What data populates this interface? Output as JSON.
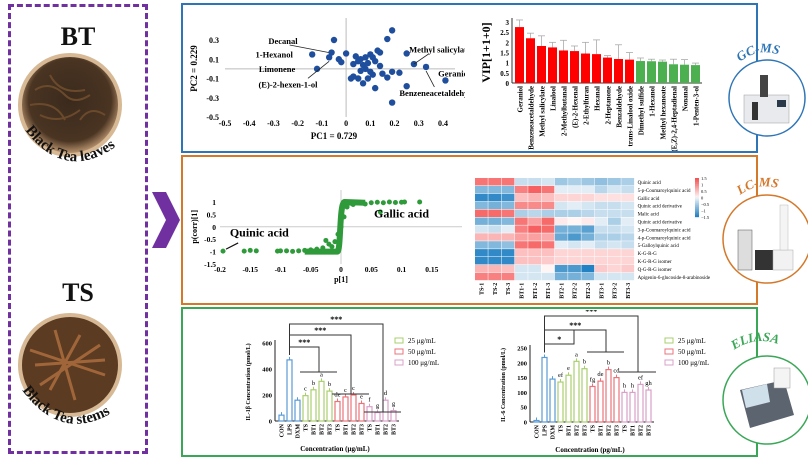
{
  "samples": {
    "bt": {
      "abbr": "BT",
      "name": "Black Tea leaves"
    },
    "ts": {
      "abbr": "TS",
      "name": "Black Tea stems"
    }
  },
  "instruments": {
    "gcms": "GC-MS",
    "lcms": "LC-MS",
    "eliasa": "ELIASA"
  },
  "colors": {
    "purple": "#7030a0",
    "gcms": "#2e75b6",
    "lcms": "#d4782a",
    "eliasa": "#3aa757",
    "red_bar": "#ff0000",
    "green_bar": "#4caf50",
    "dot_blue": "#1f4e9c",
    "dot_green": "#2e9a3a"
  },
  "chart_data": [
    {
      "type": "scatter",
      "id": "pca",
      "xlabel": "PC1 = 0.729",
      "ylabel": "PC2 = 0.229",
      "xlim": [
        -0.5,
        0.4
      ],
      "ylim": [
        -0.5,
        0.3
      ],
      "xticks": [
        "-0.5",
        "-0.4",
        "-0.3",
        "-0.2",
        "-0.1",
        "0",
        "0.1",
        "0.2",
        "0.3",
        "0.4"
      ],
      "yticks": [
        "0.3",
        "0.1",
        "-0.1",
        "-0.3",
        "-0.5"
      ],
      "points": [
        [
          -0.06,
          0.17
        ],
        [
          -0.14,
          0.15
        ],
        [
          -0.12,
          0.0
        ],
        [
          -0.07,
          0.12
        ],
        [
          0.28,
          0.05
        ],
        [
          0.41,
          -0.12
        ],
        [
          0.33,
          0.02
        ],
        [
          0.19,
          -0.35
        ],
        [
          -0.05,
          0.3
        ],
        [
          -0.03,
          0.1
        ],
        [
          -0.02,
          0.07
        ],
        [
          0.0,
          0.16
        ],
        [
          0.04,
          0.13
        ],
        [
          0.03,
          0.05
        ],
        [
          0.05,
          0.08
        ],
        [
          0.06,
          0.1
        ],
        [
          0.07,
          0.04
        ],
        [
          0.08,
          0.0
        ],
        [
          0.09,
          0.06
        ],
        [
          0.1,
          0.15
        ],
        [
          0.11,
          0.12
        ],
        [
          0.12,
          0.08
        ],
        [
          0.13,
          0.19
        ],
        [
          0.14,
          0.17
        ],
        [
          0.1,
          -0.03
        ],
        [
          0.11,
          -0.06
        ],
        [
          0.06,
          -0.02
        ],
        [
          0.05,
          -0.1
        ],
        [
          0.03,
          -0.08
        ],
        [
          0.07,
          -0.15
        ],
        [
          0.12,
          -0.2
        ],
        [
          0.15,
          -0.05
        ],
        [
          0.17,
          -0.09
        ],
        [
          0.19,
          -0.03
        ],
        [
          0.22,
          -0.04
        ],
        [
          0.25,
          0.16
        ],
        [
          0.25,
          -0.18
        ],
        [
          0.17,
          0.31
        ],
        [
          0.19,
          0.4
        ],
        [
          0.14,
          0.03
        ],
        [
          0.09,
          -0.1
        ],
        [
          0.08,
          0.12
        ],
        [
          0.02,
          -0.1
        ]
      ],
      "labels": [
        {
          "text": "Decanal",
          "point": [
            -0.06,
            0.17
          ]
        },
        {
          "text": "1-Hexanol",
          "point": [
            -0.14,
            0.15
          ]
        },
        {
          "text": "Limonene",
          "point": [
            -0.12,
            0.0
          ]
        },
        {
          "text": "(E)-2-hexen-1-ol",
          "point": [
            -0.07,
            0.12
          ]
        },
        {
          "text": "Methyl salicylate",
          "point": [
            0.28,
            0.05
          ]
        },
        {
          "text": "Geraniol",
          "point": [
            0.41,
            -0.12
          ]
        },
        {
          "text": "Benzeneacetaldehyde",
          "point": [
            0.33,
            0.02
          ]
        }
      ]
    },
    {
      "type": "bar",
      "id": "vip",
      "ylabel": "VIP[1+1+0]",
      "ylim": [
        0,
        3
      ],
      "yticks": [
        "0",
        "0.5",
        "1",
        "1.5",
        "2",
        "2.5",
        "3"
      ],
      "categories": [
        "Geraniol",
        "Benzeneacetaldehyde",
        "Methyl salicylate",
        "Linalool",
        "2-Methylbutanal",
        "(E)-2-Hexenal",
        "2-Ethylfuran",
        "Hexanal",
        "2-Heptanone",
        "Benzaldehyde",
        "trans-Linalool oxide",
        "Dimethyl sulfide",
        "1-Hexanol",
        "Methyl hexanoate",
        "(E,Z)-2,4-Heptadienal",
        "Nonanal",
        "1-Penten-3-ol"
      ],
      "values": [
        2.75,
        2.2,
        1.82,
        1.75,
        1.6,
        1.57,
        1.45,
        1.42,
        1.25,
        1.18,
        1.15,
        1.08,
        1.07,
        1.05,
        0.92,
        0.9,
        0.88
      ],
      "errors": [
        0.35,
        0.25,
        0.5,
        0.25,
        0.5,
        0.25,
        0.55,
        0.7,
        0.1,
        0.7,
        0.35,
        0.15,
        0.1,
        0.08,
        0.25,
        0.25,
        0.1
      ],
      "bar_colors": [
        "red",
        "red",
        "red",
        "red",
        "red",
        "red",
        "red",
        "red",
        "red",
        "red",
        "red",
        "green",
        "green",
        "green",
        "green",
        "green",
        "green"
      ]
    },
    {
      "type": "scatter",
      "id": "splot",
      "xlabel": "p[1]",
      "ylabel": "p(corr)[1]",
      "xlim": [
        -0.2,
        0.2
      ],
      "ylim": [
        -1.5,
        1.3
      ],
      "xticks": [
        "-0.2",
        "-0.15",
        "-0.1",
        "-0.05",
        "0",
        "0.05",
        "0.1",
        "0.15"
      ],
      "yticks": [
        "1",
        "0.5",
        "0",
        "-0.5",
        "-1",
        "-1.5"
      ],
      "points": [
        [
          -0.195,
          -0.98
        ],
        [
          -0.16,
          -0.98
        ],
        [
          -0.15,
          -0.95
        ],
        [
          -0.14,
          -0.97
        ],
        [
          -0.105,
          -0.98
        ],
        [
          -0.1,
          -0.97
        ],
        [
          -0.09,
          -0.97
        ],
        [
          -0.08,
          -0.99
        ],
        [
          -0.07,
          -0.97
        ],
        [
          -0.06,
          -0.95
        ],
        [
          -0.05,
          -0.93
        ],
        [
          -0.04,
          -0.9
        ],
        [
          -0.03,
          -0.85
        ],
        [
          -0.025,
          -0.55
        ],
        [
          -0.02,
          -0.7
        ],
        [
          -0.015,
          -0.8
        ],
        [
          -0.01,
          -0.6
        ],
        [
          -0.005,
          -0.3
        ],
        [
          0.0,
          0.0
        ],
        [
          0.005,
          0.4
        ],
        [
          0.01,
          0.8
        ],
        [
          0.015,
          0.95
        ],
        [
          0.02,
          0.9
        ],
        [
          0.03,
          0.97
        ],
        [
          0.04,
          0.92
        ],
        [
          0.05,
          0.97
        ],
        [
          0.06,
          0.99
        ],
        [
          0.065,
          0.6
        ],
        [
          0.07,
          0.97
        ],
        [
          0.08,
          1.0
        ],
        [
          0.09,
          0.98
        ],
        [
          0.1,
          0.99
        ],
        [
          0.105,
          1.0
        ],
        [
          0.13,
          1.0
        ]
      ],
      "labels": [
        {
          "text": "Gallic acid",
          "point": [
            0.1,
            0.99
          ]
        },
        {
          "text": "Quinic acid",
          "point": [
            -0.195,
            -0.98
          ]
        }
      ]
    },
    {
      "type": "heatmap",
      "id": "heatmap",
      "columns": [
        "TS-1",
        "TS-2",
        "TS-3",
        "BT1-1",
        "BT1-2",
        "BT1-3",
        "BT2-1",
        "BT2-2",
        "BT2-3",
        "BT3-1",
        "BT3-2",
        "BT3-3"
      ],
      "rows": [
        "Quinic acid",
        "5-p-Coumaroylquinic acid",
        "Gallic acid",
        "Quinic acid derivative",
        "Malic acid",
        "Quinic acid derivative",
        "3-p-Coumaroylquinic acid",
        "4-p-Coumaroylquinic acid",
        "5-Galloylquinic acid",
        "K-G-R-G",
        "K-G-R-G isomer",
        "Q-G-R-G isomer",
        "Apigenin-6-glucoside-8-arabinoside"
      ],
      "values": [
        [
          1.2,
          1.2,
          1.2,
          -0.3,
          -0.3,
          -0.2,
          -0.6,
          -0.5,
          -0.6,
          -0.7,
          -0.6,
          -0.5
        ],
        [
          -0.8,
          -0.8,
          -0.8,
          1.1,
          1.4,
          1.2,
          -0.1,
          -0.1,
          -0.1,
          -0.4,
          -0.2,
          -0.3
        ],
        [
          -1.4,
          -1.4,
          -1.3,
          0.5,
          0.6,
          0.5,
          0.3,
          0.3,
          0.3,
          0.2,
          0.2,
          0.2
        ],
        [
          -0.8,
          -0.9,
          -0.8,
          1.0,
          1.0,
          1.0,
          -0.2,
          -0.1,
          -0.2,
          -0.3,
          -0.3,
          -0.2
        ],
        [
          1.3,
          1.3,
          1.2,
          -0.5,
          -0.4,
          -0.5,
          -0.5,
          -0.5,
          -0.4,
          -0.3,
          -0.3,
          -0.3
        ],
        [
          -0.9,
          -0.9,
          -0.8,
          1.2,
          0.8,
          1.3,
          0.1,
          0.0,
          0.1,
          -0.1,
          -0.5,
          -0.1
        ],
        [
          -0.2,
          -0.3,
          -0.1,
          1.1,
          1.4,
          1.3,
          -0.9,
          -0.9,
          -1.1,
          -0.3,
          -0.3,
          -0.2
        ],
        [
          0.6,
          0.6,
          0.6,
          0.8,
          0.8,
          0.7,
          -1.0,
          -1.2,
          -0.9,
          -0.5,
          -0.5,
          -0.4
        ],
        [
          -0.8,
          -0.8,
          -0.7,
          1.2,
          1.3,
          1.2,
          -0.1,
          -0.2,
          -0.1,
          -0.3,
          -0.2,
          -0.3
        ],
        [
          -1.4,
          -1.4,
          -1.4,
          0.5,
          0.5,
          0.5,
          0.3,
          0.3,
          0.3,
          0.3,
          0.3,
          0.3
        ],
        [
          -1.4,
          -1.4,
          -1.4,
          0.5,
          0.5,
          0.4,
          0.3,
          0.3,
          0.3,
          0.3,
          0.3,
          0.3
        ],
        [
          0.6,
          0.6,
          0.5,
          -0.2,
          -0.2,
          0.0,
          -1.2,
          -1.2,
          -1.5,
          0.4,
          0.3,
          0.4
        ],
        [
          1.1,
          1.1,
          1.1,
          -0.2,
          -0.2,
          -0.2,
          -0.9,
          -0.9,
          -0.8,
          -0.2,
          -0.2,
          -0.2
        ]
      ],
      "scale": [
        -1.5,
        1.5
      ],
      "scale_ticks": [
        "1.5",
        "1",
        "0.5",
        "0",
        "−0.5",
        "−1",
        "−1.5"
      ]
    },
    {
      "type": "bar",
      "id": "il1b",
      "ylabel": "IL-1β Concentration (pmol/L)",
      "xlabel": "Concentration (μg/mL)",
      "ylim": [
        0,
        600
      ],
      "yticks": [
        "0",
        "200",
        "400",
        "600"
      ],
      "categories": [
        "CON",
        "LPS",
        "DXM",
        "TS",
        "BT1",
        "BT2",
        "BT3",
        "TS",
        "BT1",
        "BT2",
        "BT3",
        "TS",
        "BT1",
        "BT2",
        "BT3"
      ],
      "groups": [
        "ctrl",
        "ctrl",
        "ctrl",
        "25",
        "25",
        "25",
        "25",
        "50",
        "50",
        "50",
        "50",
        "100",
        "100",
        "100",
        "100"
      ],
      "values": [
        45,
        470,
        160,
        195,
        240,
        305,
        230,
        150,
        185,
        200,
        135,
        110,
        65,
        160,
        80
      ],
      "letters": [
        "",
        "",
        "",
        "c",
        "b",
        "a",
        "b",
        "de",
        "c",
        "c",
        "e",
        "f",
        "g",
        "d",
        "g"
      ],
      "significance": [
        "***",
        "***",
        "***"
      ],
      "legend": [
        "25 μg/mL",
        "50 μg/mL",
        "100 μg/mL"
      ]
    },
    {
      "type": "bar",
      "id": "il6",
      "ylabel": "IL-6 Concentration (pmol/L)",
      "xlabel": "Concentration  (pg/mL)",
      "ylim": [
        0,
        250
      ],
      "yticks": [
        "0",
        "50",
        "100",
        "150",
        "200",
        "250"
      ],
      "categories": [
        "CON",
        "LPS",
        "DXM",
        "TS",
        "BT1",
        "BT2",
        "BT3",
        "TS",
        "BT1",
        "BT2",
        "BT3",
        "TS",
        "BT1",
        "BT2",
        "BT3"
      ],
      "groups": [
        "ctrl",
        "ctrl",
        "ctrl",
        "25",
        "25",
        "25",
        "25",
        "50",
        "50",
        "50",
        "50",
        "100",
        "100",
        "100",
        "100"
      ],
      "values": [
        5,
        218,
        145,
        135,
        158,
        205,
        180,
        120,
        138,
        177,
        150,
        100,
        100,
        127,
        108
      ],
      "letters": [
        "",
        "",
        "",
        "ef",
        "e",
        "a",
        "b",
        "fg",
        "de",
        "b",
        "cd",
        "h",
        "h",
        "ef",
        "gh"
      ],
      "significance": [
        "*",
        "***",
        "***"
      ],
      "legend": [
        "25 μg/mL",
        "50 μg/mL",
        "100 μg/mL"
      ]
    }
  ]
}
